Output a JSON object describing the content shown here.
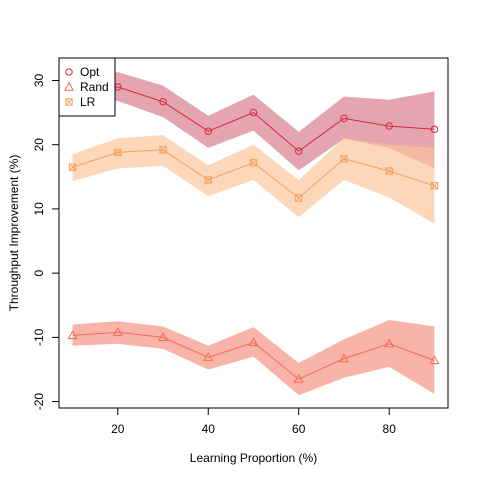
{
  "chart_data": {
    "type": "line",
    "title": "",
    "xlabel": "Learning Proportion (%)",
    "ylabel": "Throughput Improvement (%)",
    "xlim": [
      7,
      93
    ],
    "ylim": [
      -21,
      33.5
    ],
    "x_ticks": [
      20,
      40,
      60,
      80
    ],
    "y_ticks": [
      -20,
      -10,
      0,
      10,
      20,
      30
    ],
    "x_tick_labels": [
      "20",
      "40",
      "60",
      "80"
    ],
    "y_tick_labels": [
      "-20",
      "-10",
      "0",
      "10",
      "20",
      "30"
    ],
    "grid": false,
    "legend_position": "top-left",
    "x": [
      10,
      20,
      30,
      40,
      50,
      60,
      70,
      80,
      90
    ],
    "series": [
      {
        "name": "Opt",
        "marker": "circle",
        "color": "#d7263d",
        "band_color": "#d77a8a",
        "values": [
          28.8,
          29.0,
          26.7,
          22.1,
          25.0,
          19.0,
          24.1,
          22.9,
          22.4
        ],
        "upper": [
          30.3,
          31.3,
          29.2,
          24.5,
          27.8,
          22.0,
          27.5,
          27.0,
          28.3
        ],
        "lower": [
          27.0,
          26.8,
          24.3,
          19.5,
          22.2,
          16.0,
          20.9,
          19.5,
          16.3
        ]
      },
      {
        "name": "Rand",
        "marker": "triangle",
        "color": "#f26b55",
        "band_color": "#f4917f",
        "values": [
          -9.7,
          -9.2,
          -10.0,
          -13.1,
          -10.8,
          -16.5,
          -13.3,
          -11.0,
          -13.6
        ],
        "upper": [
          -8.0,
          -7.5,
          -8.3,
          -11.3,
          -8.4,
          -14.0,
          -10.3,
          -7.3,
          -8.3
        ],
        "lower": [
          -11.3,
          -11.0,
          -11.8,
          -15.0,
          -13.0,
          -19.0,
          -16.3,
          -14.6,
          -18.8
        ]
      },
      {
        "name": "LR",
        "marker": "boxed-x",
        "color": "#f5a25d",
        "band_color": "#fcc49a",
        "values": [
          16.5,
          18.8,
          19.2,
          14.5,
          17.2,
          11.7,
          17.8,
          15.9,
          13.6
        ],
        "upper": [
          18.5,
          21.0,
          21.5,
          16.8,
          20.0,
          14.5,
          21.0,
          20.0,
          19.5
        ],
        "lower": [
          14.3,
          16.3,
          16.7,
          12.0,
          14.5,
          8.7,
          14.5,
          11.8,
          7.7
        ]
      }
    ]
  }
}
